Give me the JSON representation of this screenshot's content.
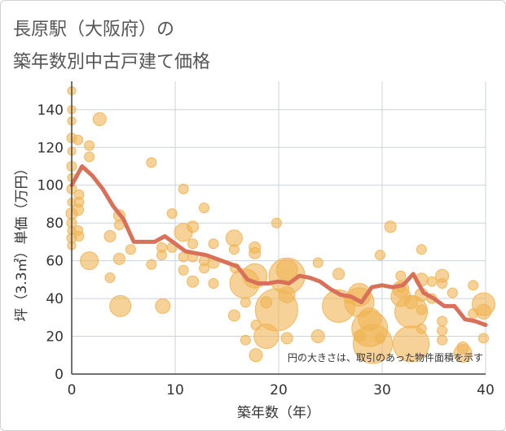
{
  "chart_data": {
    "type": "scatter",
    "title": [
      "長原駅（大阪府）の",
      "築年数別中古戸建て価格"
    ],
    "xlabel": "築年数（年）",
    "ylabel": "坪（3.3㎡）単価（万円）",
    "xlim": [
      0,
      40
    ],
    "ylim": [
      0,
      155
    ],
    "x_ticks": [
      0,
      10,
      20,
      30,
      40
    ],
    "y_ticks": [
      0,
      20,
      40,
      60,
      80,
      100,
      120,
      140
    ],
    "grid": true,
    "note": "円の大きさは、取引のあった物件面積を示す",
    "colors": {
      "bubble": "#f0b454",
      "line": "#d9705a",
      "grid": "#c9d3dd",
      "plot_bg": "#ffffff"
    },
    "line_series": {
      "x": [
        0,
        1,
        2,
        3,
        4,
        5,
        6,
        7,
        8,
        9,
        10,
        11,
        12,
        13,
        14,
        15,
        16,
        17,
        18,
        19,
        20,
        21,
        22,
        23,
        24,
        25,
        26,
        27,
        28,
        29,
        30,
        31,
        32,
        33,
        34,
        35,
        36,
        37,
        38,
        39,
        40
      ],
      "y": [
        100,
        110,
        105,
        98,
        89,
        82,
        70,
        70,
        70,
        73,
        69,
        65,
        64,
        63,
        61,
        59,
        57,
        50,
        48,
        48,
        49,
        48,
        52,
        51,
        49,
        45,
        42,
        41,
        38,
        46,
        47,
        46,
        47,
        53,
        43,
        40,
        36,
        36,
        29,
        28,
        26
      ]
    },
    "bubbles": [
      {
        "x": 0,
        "y": 150,
        "s": 5
      },
      {
        "x": 0,
        "y": 140,
        "s": 5
      },
      {
        "x": 0,
        "y": 134,
        "s": 5
      },
      {
        "x": 0,
        "y": 125,
        "s": 6
      },
      {
        "x": 0,
        "y": 118,
        "s": 5
      },
      {
        "x": 0,
        "y": 110,
        "s": 6
      },
      {
        "x": 0,
        "y": 104,
        "s": 5
      },
      {
        "x": 0,
        "y": 98,
        "s": 6
      },
      {
        "x": 0,
        "y": 91,
        "s": 5
      },
      {
        "x": 0,
        "y": 85,
        "s": 7
      },
      {
        "x": 0,
        "y": 80,
        "s": 6
      },
      {
        "x": 0,
        "y": 76,
        "s": 5
      },
      {
        "x": 0,
        "y": 72,
        "s": 6
      },
      {
        "x": 0,
        "y": 68,
        "s": 5
      },
      {
        "x": 0.6,
        "y": 124,
        "s": 6
      },
      {
        "x": 0.7,
        "y": 95,
        "s": 6
      },
      {
        "x": 0.7,
        "y": 91,
        "s": 6
      },
      {
        "x": 0.6,
        "y": 87,
        "s": 7
      },
      {
        "x": 0.6,
        "y": 76,
        "s": 6
      },
      {
        "x": 0.7,
        "y": 73,
        "s": 6
      },
      {
        "x": 1.7,
        "y": 121,
        "s": 6
      },
      {
        "x": 1.7,
        "y": 115,
        "s": 6
      },
      {
        "x": 2.7,
        "y": 135,
        "s": 8
      },
      {
        "x": 1.7,
        "y": 60,
        "s": 11
      },
      {
        "x": 3.7,
        "y": 73,
        "s": 7
      },
      {
        "x": 3.7,
        "y": 51,
        "s": 6
      },
      {
        "x": 4.6,
        "y": 84,
        "s": 7
      },
      {
        "x": 4.6,
        "y": 79,
        "s": 6
      },
      {
        "x": 4.6,
        "y": 61,
        "s": 7
      },
      {
        "x": 4.7,
        "y": 36,
        "s": 13
      },
      {
        "x": 5.7,
        "y": 66,
        "s": 6
      },
      {
        "x": 7.7,
        "y": 112,
        "s": 6
      },
      {
        "x": 7.7,
        "y": 58,
        "s": 6
      },
      {
        "x": 8.7,
        "y": 67,
        "s": 6
      },
      {
        "x": 8.7,
        "y": 63,
        "s": 6
      },
      {
        "x": 8.8,
        "y": 36,
        "s": 9
      },
      {
        "x": 9.7,
        "y": 85,
        "s": 6
      },
      {
        "x": 9.7,
        "y": 67,
        "s": 6
      },
      {
        "x": 10.8,
        "y": 98,
        "s": 6
      },
      {
        "x": 10.8,
        "y": 75,
        "s": 11
      },
      {
        "x": 10.8,
        "y": 62,
        "s": 6
      },
      {
        "x": 10.8,
        "y": 55,
        "s": 6
      },
      {
        "x": 11.7,
        "y": 78,
        "s": 7
      },
      {
        "x": 11.7,
        "y": 69,
        "s": 6
      },
      {
        "x": 11.7,
        "y": 62,
        "s": 6
      },
      {
        "x": 11.7,
        "y": 49,
        "s": 7
      },
      {
        "x": 12.8,
        "y": 88,
        "s": 6
      },
      {
        "x": 12.8,
        "y": 60,
        "s": 6
      },
      {
        "x": 12.8,
        "y": 56,
        "s": 6
      },
      {
        "x": 13.7,
        "y": 69,
        "s": 6
      },
      {
        "x": 13.7,
        "y": 59,
        "s": 7
      },
      {
        "x": 13.7,
        "y": 48,
        "s": 6
      },
      {
        "x": 15.7,
        "y": 72,
        "s": 10
      },
      {
        "x": 15.7,
        "y": 66,
        "s": 6
      },
      {
        "x": 15.8,
        "y": 56,
        "s": 6
      },
      {
        "x": 15.7,
        "y": 31,
        "s": 7
      },
      {
        "x": 16.7,
        "y": 48,
        "s": 18
      },
      {
        "x": 16.8,
        "y": 38,
        "s": 6
      },
      {
        "x": 16.8,
        "y": 18,
        "s": 6
      },
      {
        "x": 17.7,
        "y": 67,
        "s": 7
      },
      {
        "x": 17.7,
        "y": 64,
        "s": 7
      },
      {
        "x": 17.7,
        "y": 52,
        "s": 15
      },
      {
        "x": 17.8,
        "y": 26,
        "s": 6
      },
      {
        "x": 17.8,
        "y": 10,
        "s": 8
      },
      {
        "x": 18.8,
        "y": 38,
        "s": 7
      },
      {
        "x": 18.8,
        "y": 20,
        "s": 15
      },
      {
        "x": 19.8,
        "y": 80,
        "s": 6
      },
      {
        "x": 19.8,
        "y": 34,
        "s": 26
      },
      {
        "x": 20.8,
        "y": 52,
        "s": 22
      },
      {
        "x": 20.8,
        "y": 42,
        "s": 10
      },
      {
        "x": 20.8,
        "y": 55,
        "s": 13
      },
      {
        "x": 20.8,
        "y": 19,
        "s": 7
      },
      {
        "x": 23.8,
        "y": 59,
        "s": 6
      },
      {
        "x": 23.8,
        "y": 20,
        "s": 8
      },
      {
        "x": 25.8,
        "y": 53,
        "s": 7
      },
      {
        "x": 25.8,
        "y": 36,
        "s": 20
      },
      {
        "x": 26.8,
        "y": 40,
        "s": 6
      },
      {
        "x": 27.8,
        "y": 42,
        "s": 14
      },
      {
        "x": 27.8,
        "y": 38,
        "s": 18
      },
      {
        "x": 27.8,
        "y": 20,
        "s": 7
      },
      {
        "x": 28.8,
        "y": 29,
        "s": 14
      },
      {
        "x": 28.8,
        "y": 24,
        "s": 22
      },
      {
        "x": 29.1,
        "y": 16,
        "s": 24
      },
      {
        "x": 29.8,
        "y": 63,
        "s": 6
      },
      {
        "x": 29.8,
        "y": 19,
        "s": 6
      },
      {
        "x": 30.8,
        "y": 78,
        "s": 7
      },
      {
        "x": 31.8,
        "y": 52,
        "s": 6
      },
      {
        "x": 31.8,
        "y": 46,
        "s": 6
      },
      {
        "x": 31.8,
        "y": 45,
        "s": 10
      },
      {
        "x": 31.8,
        "y": 41,
        "s": 12
      },
      {
        "x": 32.8,
        "y": 38,
        "s": 8
      },
      {
        "x": 32.8,
        "y": 33,
        "s": 20
      },
      {
        "x": 32.8,
        "y": 16,
        "s": 22
      },
      {
        "x": 33.8,
        "y": 66,
        "s": 6
      },
      {
        "x": 33.8,
        "y": 50,
        "s": 8
      },
      {
        "x": 33.8,
        "y": 42,
        "s": 8
      },
      {
        "x": 33.8,
        "y": 34,
        "s": 6
      },
      {
        "x": 33.8,
        "y": 24,
        "s": 6
      },
      {
        "x": 34.8,
        "y": 49,
        "s": 6
      },
      {
        "x": 34.8,
        "y": 40,
        "s": 6
      },
      {
        "x": 35.8,
        "y": 52,
        "s": 8
      },
      {
        "x": 35.8,
        "y": 48,
        "s": 6
      },
      {
        "x": 35.8,
        "y": 28,
        "s": 6
      },
      {
        "x": 35.8,
        "y": 23,
        "s": 6
      },
      {
        "x": 35.8,
        "y": 18,
        "s": 6
      },
      {
        "x": 36.8,
        "y": 43,
        "s": 6
      },
      {
        "x": 37.8,
        "y": 14,
        "s": 7
      },
      {
        "x": 37.8,
        "y": 11,
        "s": 11
      },
      {
        "x": 38.8,
        "y": 47,
        "s": 6
      },
      {
        "x": 38.8,
        "y": 32,
        "s": 6
      },
      {
        "x": 39.8,
        "y": 37,
        "s": 14
      },
      {
        "x": 39.8,
        "y": 33,
        "s": 9
      },
      {
        "x": 39.8,
        "y": 19,
        "s": 6
      }
    ]
  }
}
